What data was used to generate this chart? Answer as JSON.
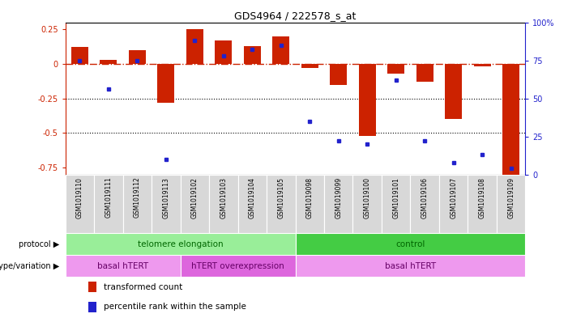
{
  "title": "GDS4964 / 222578_s_at",
  "samples": [
    "GSM1019110",
    "GSM1019111",
    "GSM1019112",
    "GSM1019113",
    "GSM1019102",
    "GSM1019103",
    "GSM1019104",
    "GSM1019105",
    "GSM1019098",
    "GSM1019099",
    "GSM1019100",
    "GSM1019101",
    "GSM1019106",
    "GSM1019107",
    "GSM1019108",
    "GSM1019109"
  ],
  "bar_values": [
    0.12,
    0.03,
    0.1,
    -0.28,
    0.25,
    0.17,
    0.13,
    0.2,
    -0.03,
    -0.15,
    -0.52,
    -0.07,
    -0.13,
    -0.4,
    -0.02,
    -0.8
  ],
  "percentile_values": [
    75,
    56,
    75,
    10,
    88,
    78,
    82,
    85,
    35,
    22,
    20,
    62,
    22,
    8,
    13,
    4
  ],
  "ylim_left": [
    -0.8,
    0.3
  ],
  "ylim_right": [
    0,
    100
  ],
  "left_yticks": [
    -0.75,
    -0.5,
    -0.25,
    0,
    0.25
  ],
  "right_yticks": [
    0,
    25,
    50,
    75,
    100
  ],
  "right_yticklabels": [
    "0",
    "25",
    "50",
    "75",
    "100%"
  ],
  "hline_y": 0.0,
  "dotted_lines": [
    -0.25,
    -0.5
  ],
  "bar_color": "#cc2200",
  "dot_color": "#2222cc",
  "protocol_groups": [
    {
      "label": "telomere elongation",
      "start": 0,
      "end": 7,
      "color": "#99ee99"
    },
    {
      "label": "control",
      "start": 8,
      "end": 15,
      "color": "#44cc44"
    }
  ],
  "genotype_groups": [
    {
      "label": "basal hTERT",
      "start": 0,
      "end": 3,
      "color": "#ee99ee"
    },
    {
      "label": "hTERT overexpression",
      "start": 4,
      "end": 7,
      "color": "#dd66dd"
    },
    {
      "label": "basal hTERT",
      "start": 8,
      "end": 15,
      "color": "#ee99ee"
    }
  ],
  "legend_items": [
    {
      "color": "#cc2200",
      "label": "transformed count"
    },
    {
      "color": "#2222cc",
      "label": "percentile rank within the sample"
    }
  ],
  "fig_width": 7.01,
  "fig_height": 3.93,
  "dpi": 100
}
